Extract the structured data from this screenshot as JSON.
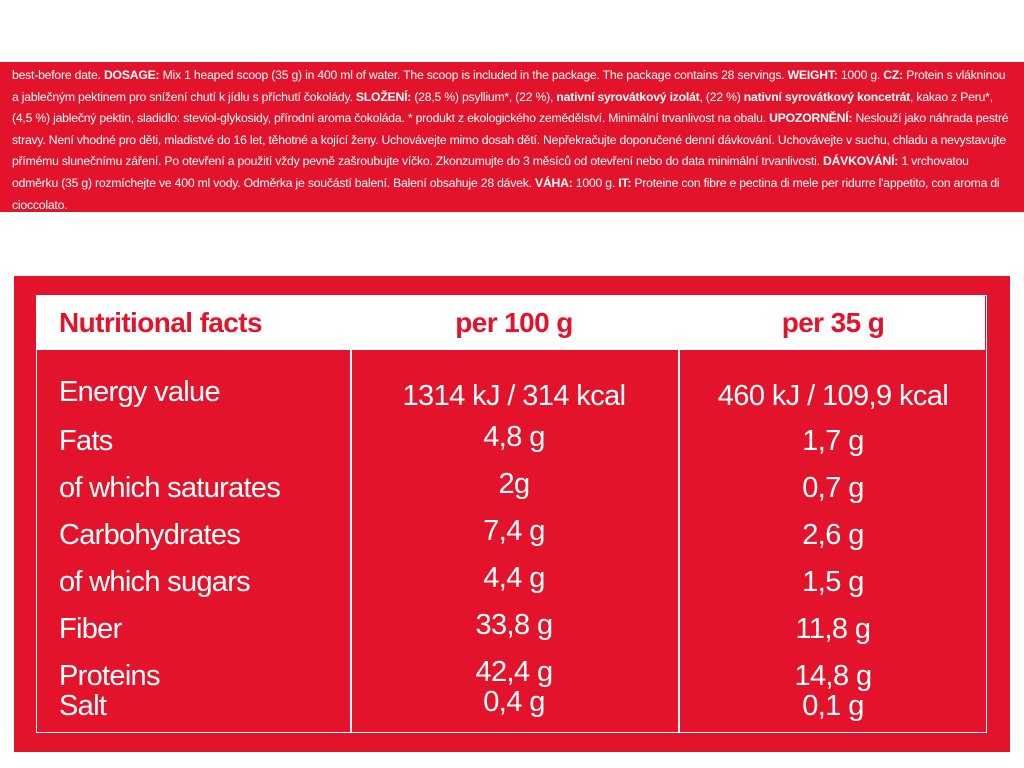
{
  "label": {
    "segments": [
      {
        "text": "best-before date. ",
        "bold": false
      },
      {
        "text": "DOSAGE:",
        "bold": true
      },
      {
        "text": " Mix 1 heaped scoop (35 g) in 400 ml of water. The scoop is included in the package. The package contains 28 servings. ",
        "bold": false
      },
      {
        "text": "WEIGHT:",
        "bold": true
      },
      {
        "text": " 1000 g. ",
        "bold": false
      },
      {
        "text": "CZ:",
        "bold": true
      },
      {
        "text": " Protein s vlákninou a jablečným pektinem pro snížení chutí k jídlu s příchutí čokolády. ",
        "bold": false
      },
      {
        "text": "SLOŽENÍ:",
        "bold": true
      },
      {
        "text": " (28,5 %) psyllium*, (22 %), ",
        "bold": false
      },
      {
        "text": "nativní syrovátkový izolát",
        "bold": true
      },
      {
        "text": ", (22 %) ",
        "bold": false
      },
      {
        "text": "nativní syrovátkový koncetrát",
        "bold": true
      },
      {
        "text": ", kakao z Peru*, (4,5 %) jablečný pektin, sladidlo: steviol-glykosidy, přírodní aroma čokoláda. * produkt z ekologického zemědělství. Minimální trvanlivost na obalu. ",
        "bold": false
      },
      {
        "text": "UPOZORNĚNÍ:",
        "bold": true
      },
      {
        "text": " Neslouží jako náhrada pestré stravy. Není vhodné pro děti, mladistvé do 16 let, těhotné a kojící ženy. Uchovávejte mimo dosah dětí. Nepřekračujte doporučené denní dávkování. Uchovávejte v suchu, chladu a nevystavujte přímému slunečnímu záření. Po otevření a použití vždy pevně zašroubujte víčko. Zkonzumujte do 3 měsíců od otevření nebo do data minimální trvanlivosti. ",
        "bold": false
      },
      {
        "text": "DÁVKOVÁNÍ:",
        "bold": true
      },
      {
        "text": " 1 vrchovatou odměrku (35 g) rozmíchejte ve 400 ml vody. Odměrka je součástí balení. Balení obsahuje 28 dávek. ",
        "bold": false
      },
      {
        "text": "VÁHA:",
        "bold": true
      },
      {
        "text": " 1000 g. ",
        "bold": false
      },
      {
        "text": "IT:",
        "bold": true
      },
      {
        "text": " Proteine con fibre e pectina di mele per ridurre l'appetito, con aroma di cioccolato.",
        "bold": false
      }
    ]
  },
  "nutrition": {
    "headers": {
      "name": "Nutritional facts",
      "per100": "per 100 g",
      "perServing": "per 35 g"
    },
    "rows": [
      {
        "name": "Energy value",
        "per100": "1314 kJ / 314 kcal",
        "perServing": "460 kJ / 109,9 kcal"
      },
      {
        "name": "Fats",
        "per100": "4,8 g",
        "perServing": "1,7 g"
      },
      {
        "name": "of which saturates",
        "per100": "2g",
        "perServing": "0,7 g"
      },
      {
        "name": "Carbohydrates",
        "per100": "7,4 g",
        "perServing": "2,6 g"
      },
      {
        "name": "of which sugars",
        "per100": "4,4 g",
        "perServing": "1,5 g"
      },
      {
        "name": "Fiber",
        "per100": "33,8 g",
        "perServing": "11,8 g"
      },
      {
        "name": "Proteins",
        "per100": "42,4 g",
        "perServing": "14,8 g"
      },
      {
        "name": "Salt",
        "per100": "0,4 g",
        "perServing": "0,1 g"
      }
    ]
  },
  "colors": {
    "brand_red": "#e3132b",
    "text_white": "#ffffff"
  }
}
